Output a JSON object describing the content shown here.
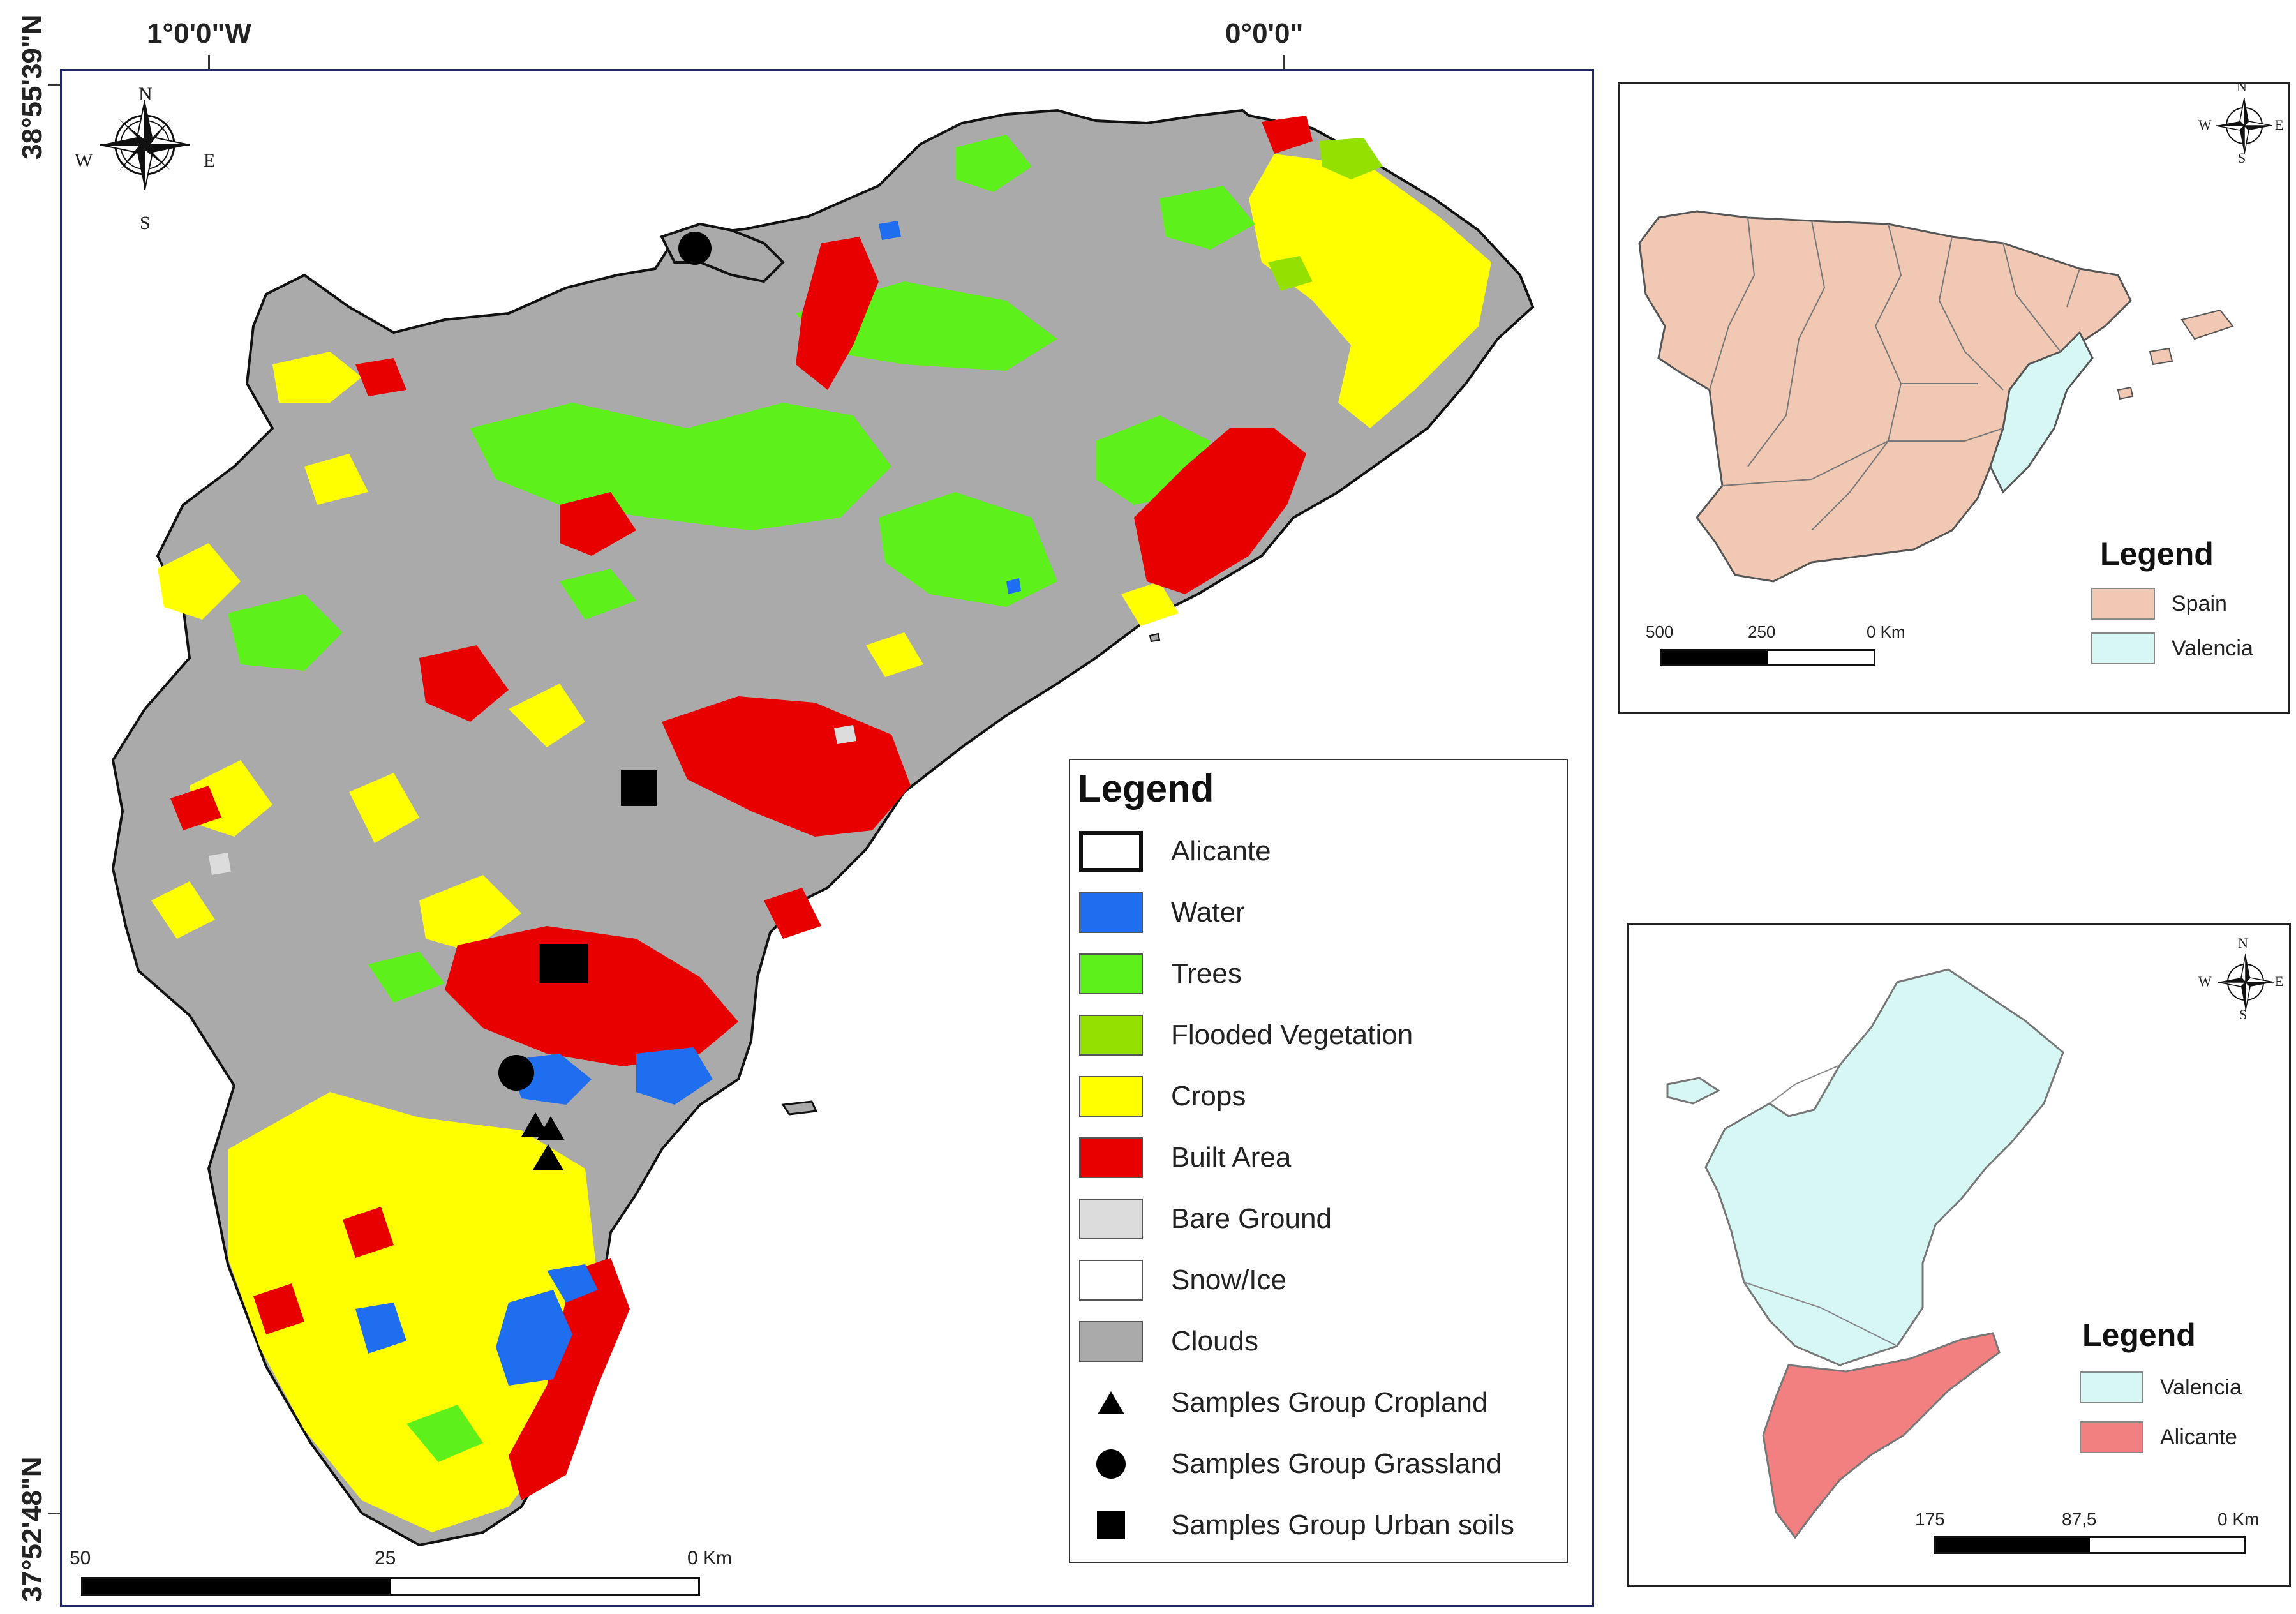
{
  "coordinates": {
    "lon_left": "1°0'0\"W",
    "lon_right": "0°0'0\"",
    "lat_top": "38°55'39\"N",
    "lat_bottom": "37°52'48\"N"
  },
  "compass": {
    "n": "N",
    "s": "S",
    "e": "E",
    "w": "W"
  },
  "main_legend": {
    "title": "Legend",
    "items": [
      {
        "label": "Alicante",
        "color": "#ffffff",
        "kind": "outline"
      },
      {
        "label": "Water",
        "color": "#1f6ef0",
        "kind": "fill"
      },
      {
        "label": "Trees",
        "color": "#5ef01a",
        "kind": "fill"
      },
      {
        "label": "Flooded Vegetation",
        "color": "#94e000",
        "kind": "fill"
      },
      {
        "label": "Crops",
        "color": "#ffff00",
        "kind": "fill"
      },
      {
        "label": "Built Area",
        "color": "#e80000",
        "kind": "fill"
      },
      {
        "label": "Bare Ground",
        "color": "#dcdcdc",
        "kind": "fill"
      },
      {
        "label": "Snow/Ice",
        "color": "#ffffff",
        "kind": "fill"
      },
      {
        "label": "Clouds",
        "color": "#aaaaaa",
        "kind": "fill"
      },
      {
        "label": "Samples Group Cropland",
        "kind": "triangle"
      },
      {
        "label": "Samples Group Grassland",
        "kind": "circle"
      },
      {
        "label": "Samples Group Urban soils",
        "kind": "square"
      }
    ]
  },
  "main_scale": {
    "labels": [
      "50",
      "25",
      "0 Km"
    ]
  },
  "spain_panel": {
    "legend_title": "Legend",
    "items": [
      {
        "label": "Spain",
        "color": "#f0c8b4"
      },
      {
        "label": "Valencia",
        "color": "#d6f7f3"
      }
    ],
    "scale_labels": [
      "500",
      "250",
      "0 Km"
    ]
  },
  "valencia_panel": {
    "legend_title": "Legend",
    "items": [
      {
        "label": "Valencia",
        "color": "#d6f7f3"
      },
      {
        "label": "Alicante",
        "color": "#f28080"
      }
    ],
    "scale_labels": [
      "175",
      "87,5",
      "0 Km"
    ]
  }
}
